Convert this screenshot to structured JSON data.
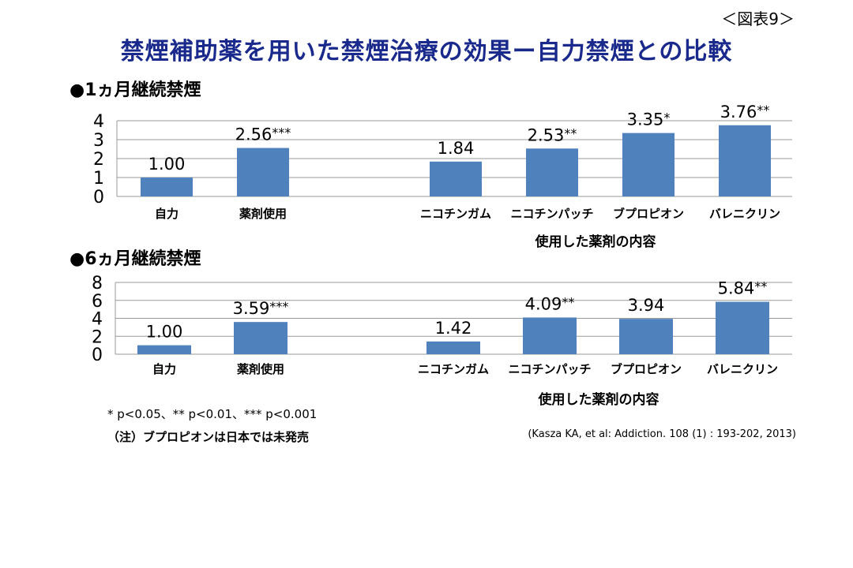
{
  "figure_label": "＜図表9＞",
  "title": "禁煙補助薬を用いた禁煙治療の効果ー自力禁煙との比較",
  "footnotes": {
    "significance": "* p<0.05、** p<0.01、*** p<0.001",
    "note": "（注）ブプロピオンは日本では未発売",
    "citation": "(Kasza KA, et al: Addiction. 108 (1) : 193-202, 2013)"
  },
  "colors": {
    "bar": "#4f81bd",
    "gridline": "#9a9a9a",
    "title": "#1a2a8c"
  },
  "chart_data": [
    {
      "type": "bar",
      "title": "●1ヵ月継続禁煙",
      "categories": [
        "自力",
        "薬剤使用",
        "ニコチンガム",
        "ニコチンパッチ",
        "ブプロピオン",
        "バレニクリン"
      ],
      "values": [
        1.0,
        2.56,
        1.84,
        2.53,
        3.35,
        3.76
      ],
      "value_labels": [
        "1.00",
        "2.56",
        "1.84",
        "2.53",
        "3.35",
        "3.76"
      ],
      "significance": [
        "",
        "***",
        "",
        "**",
        "*",
        "**"
      ],
      "xlabel": "使用した薬剤の内容",
      "ylabel": "",
      "ylim": [
        0,
        4
      ],
      "yticks": [
        0,
        1,
        2,
        3,
        4
      ],
      "grid": true
    },
    {
      "type": "bar",
      "title": "●6ヵ月継続禁煙",
      "categories": [
        "自力",
        "薬剤使用",
        "ニコチンガム",
        "ニコチンパッチ",
        "ブプロピオン",
        "バレニクリン"
      ],
      "values": [
        1.0,
        3.59,
        1.42,
        4.09,
        3.94,
        5.84
      ],
      "value_labels": [
        "1.00",
        "3.59",
        "1.42",
        "4.09",
        "3.94",
        "5.84"
      ],
      "significance": [
        "",
        "***",
        "",
        "**",
        "",
        "**"
      ],
      "xlabel": "使用した薬剤の内容",
      "ylabel": "",
      "ylim": [
        0,
        8
      ],
      "yticks": [
        0,
        2,
        4,
        6,
        8
      ],
      "grid": true
    }
  ]
}
